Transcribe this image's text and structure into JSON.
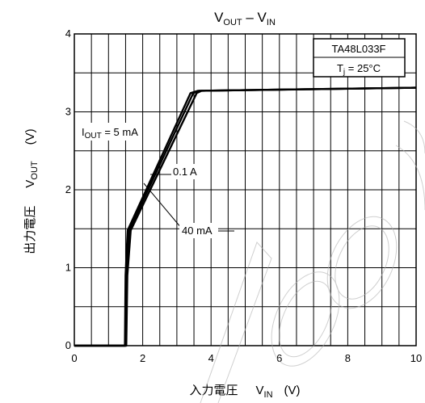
{
  "chart_data": {
    "type": "line",
    "title": {
      "main": "V",
      "sub1": "OUT",
      "mid": " – V",
      "sub2": "IN"
    },
    "xlabel": {
      "jp": "入力電圧",
      "sym": "V",
      "sub": "IN",
      "unit": "(V)"
    },
    "ylabel": {
      "jp": "出力電圧",
      "sym": "V",
      "sub": "OUT",
      "unit": "(V)"
    },
    "xlim": [
      0,
      10
    ],
    "ylim": [
      0,
      4
    ],
    "x_ticks": [
      "0",
      "2",
      "4",
      "6",
      "8",
      "10"
    ],
    "y_ticks": [
      "0",
      "1",
      "2",
      "3",
      "4"
    ],
    "grid": true,
    "info_box": {
      "part": "TA48L033F",
      "tj_sym": "T",
      "tj_sub": "j",
      "tj_val": " = 25°C"
    },
    "series": [
      {
        "name": "5 mA",
        "x": [
          0,
          1.48,
          1.5,
          1.56,
          3.4,
          3.62,
          10
        ],
        "y": [
          0,
          0,
          0.9,
          1.48,
          3.24,
          3.27,
          3.31
        ]
      },
      {
        "name": "40 mA",
        "x": [
          0,
          1.5,
          1.52,
          1.6,
          3.48,
          3.66,
          10
        ],
        "y": [
          0,
          0,
          0.9,
          1.48,
          3.24,
          3.27,
          3.31
        ]
      },
      {
        "name": "0.1 A",
        "x": [
          0,
          1.52,
          1.55,
          1.65,
          3.58,
          3.72,
          10
        ],
        "y": [
          0,
          0,
          0.9,
          1.48,
          3.24,
          3.27,
          3.31
        ]
      }
    ],
    "annotations": [
      {
        "pre": "I",
        "sub": "OUT",
        "text": " = 5 mA"
      },
      {
        "pre": "",
        "sub": "",
        "text": "0.1 A"
      },
      {
        "pre": "",
        "sub": "",
        "text": "40 mA"
      }
    ]
  }
}
